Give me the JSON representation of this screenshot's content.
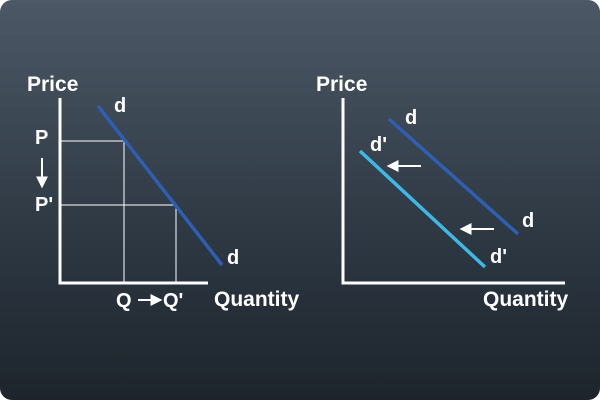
{
  "colors": {
    "axis": "#ffffff",
    "guide": "#ffffff",
    "demand_original": "#2f5fb3",
    "demand_shifted": "#3fb8e6",
    "text": "#ffffff"
  },
  "left_panel": {
    "y_axis_label": "Price",
    "x_axis_label": "Quantity",
    "demand_curve_labels": [
      "d",
      "d"
    ],
    "price_start_label": "P",
    "price_end_label": "P'",
    "quantity_start_label": "Q",
    "quantity_arrow": "→",
    "quantity_end_label": "Q'"
  },
  "right_panel": {
    "y_axis_label": "Price",
    "x_axis_label": "Quantity",
    "original_curve_labels": [
      "d",
      "d"
    ],
    "shifted_curve_labels": [
      "d'",
      "d'"
    ],
    "shift_direction": "left"
  }
}
